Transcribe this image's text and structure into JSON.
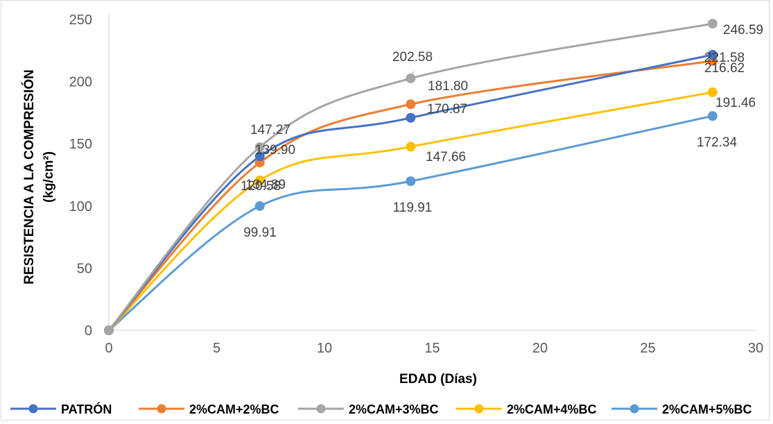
{
  "chart_data": {
    "type": "line",
    "title": "",
    "xlabel": "EDAD (Días)",
    "ylabel": "RESISTENCIA A LA COMPRESIÓN (kg/cm²)",
    "ylabel_lines": [
      "RESISTENCIA A LA COMPRESIÓN",
      "(kg/cm²)"
    ],
    "xlim": [
      0,
      30
    ],
    "ylim": [
      0,
      250
    ],
    "x_ticks": [
      "0",
      "5",
      "10",
      "15",
      "20",
      "25",
      "30"
    ],
    "y_ticks": [
      "0",
      "50",
      "100",
      "150",
      "200",
      "250"
    ],
    "grid": "vertical-none",
    "smooth": true,
    "legend_position": "bottom",
    "x": [
      0,
      7,
      14,
      28
    ],
    "series": [
      {
        "name": "PATRÓN",
        "color": "#4472C4",
        "values": [
          0,
          139.9,
          170.87,
          221.58
        ],
        "labels": [
          "",
          "139.90",
          "170.87",
          "221.58"
        ]
      },
      {
        "name": "2%CAM+2%BC",
        "color": "#ED7D31",
        "values": [
          0,
          134.89,
          181.8,
          216.62
        ],
        "labels": [
          "",
          "134.89",
          "181.80",
          "216.62"
        ]
      },
      {
        "name": "2%CAM+3%BC",
        "color": "#A5A5A5",
        "values": [
          0,
          147.27,
          202.58,
          246.59
        ],
        "labels": [
          "",
          "147.27",
          "202.58",
          "246.59"
        ]
      },
      {
        "name": "2%CAM+4%BC",
        "color": "#FFC000",
        "values": [
          0,
          120.58,
          147.66,
          191.46
        ],
        "labels": [
          "",
          "120.58",
          "147.66",
          "191.46"
        ]
      },
      {
        "name": "2%CAM+5%BC",
        "color": "#5B9BD5",
        "values": [
          0,
          99.91,
          119.91,
          172.34
        ],
        "labels": [
          "",
          "99.91",
          "119.91",
          "172.34"
        ]
      }
    ]
  }
}
